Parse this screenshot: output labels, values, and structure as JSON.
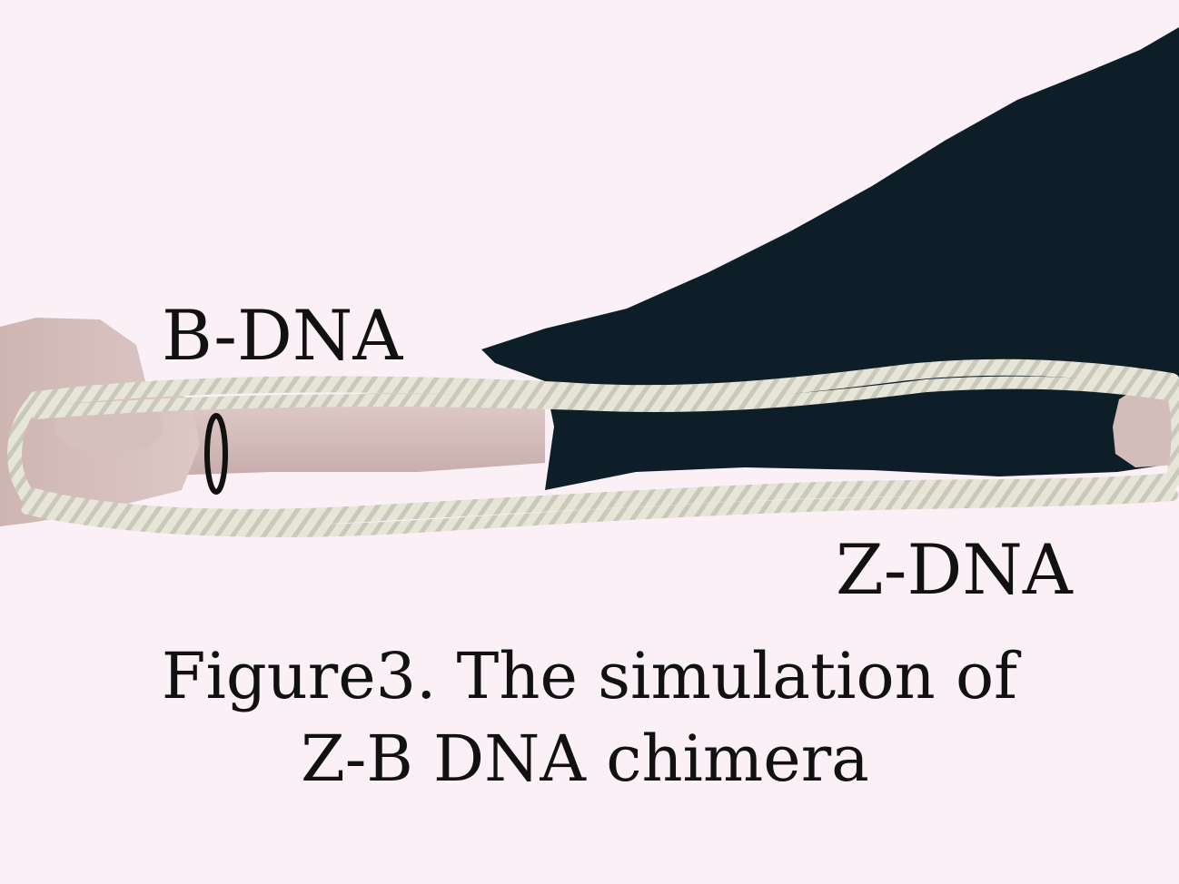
{
  "labels": {
    "b_dna": "B-DNA",
    "z_dna": "Z-DNA"
  },
  "caption": {
    "line1": "Figure3. The simulation of",
    "line2": "Z-B DNA chimera"
  },
  "colors": {
    "background": "#fbf0f6",
    "sleeve": "#0e1e28",
    "skin": "#d9c3c0",
    "rope": "#e4e3d6",
    "text": "#111111"
  }
}
